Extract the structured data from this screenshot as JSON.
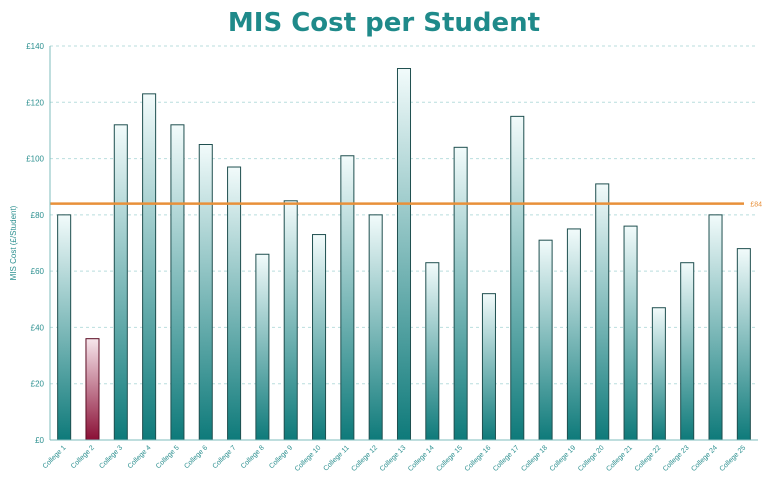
{
  "chart_data": {
    "type": "bar",
    "title": "MIS Cost per Student",
    "ylabel": "MIS Cost (£/Student)",
    "xlabel": "",
    "ylim": [
      0,
      140
    ],
    "yticks": [
      "£0",
      "£20",
      "£40",
      "£60",
      "£80",
      "£100",
      "£120",
      "£140"
    ],
    "grid": true,
    "categories": [
      "College 1",
      "College 2",
      "College 3",
      "College 4",
      "College 5",
      "College 6",
      "College 7",
      "College 8",
      "College 9",
      "College 10",
      "College 11",
      "College 12",
      "College 13",
      "College 14",
      "College 15",
      "College 16",
      "College 17",
      "College 18",
      "College 19",
      "College 20",
      "College 21",
      "College 22",
      "College 23",
      "College 24",
      "College 25"
    ],
    "values": [
      80,
      36,
      112,
      123,
      112,
      105,
      97,
      66,
      85,
      73,
      101,
      80,
      132,
      63,
      104,
      52,
      115,
      71,
      75,
      91,
      76,
      47,
      63,
      80,
      68
    ],
    "highlight_index": 1,
    "reference_line": {
      "value": 84,
      "label": "£84"
    },
    "colors": {
      "bar_top": "#f2fbfb",
      "bar_bottom": "#0e7a7a",
      "highlight_top": "#f7e6ec",
      "highlight_bottom": "#8a0f35",
      "reference": "#e8903a",
      "title": "#1f8a8a",
      "axis": "#2b8f8f"
    }
  }
}
